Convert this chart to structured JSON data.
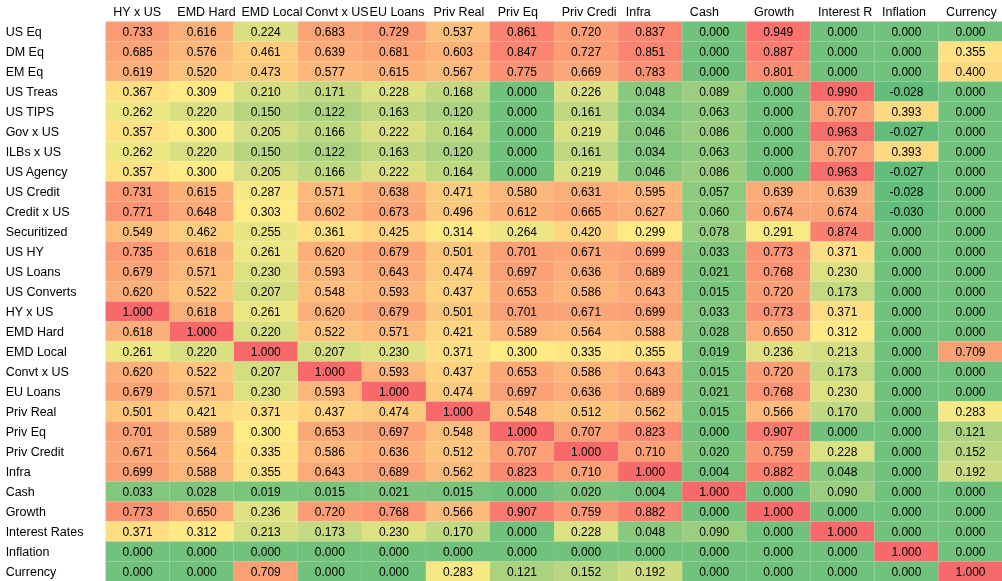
{
  "chart_data": {
    "type": "heatmap",
    "categories": [
      "HY x US",
      "EMD Hard",
      "EMD Local",
      "Convt x US",
      "EU Loans",
      "Priv Real",
      "Priv Eq",
      "Priv Credi",
      "Infra",
      "Cash",
      "Growth",
      "Interest R",
      "Inflation",
      "Currency"
    ],
    "y_categories": [
      "US Eq",
      "DM Eq",
      "EM Eq",
      "US Treas",
      "US TIPS",
      "Gov x US",
      "ILBs x US",
      "US Agency",
      "US Credit",
      "Credit x US",
      "Securitized",
      "US HY",
      "US Loans",
      "US Converts",
      "HY x US",
      "EMD Hard",
      "EMD Local",
      "Convt x US",
      "EU Loans",
      "Priv Real",
      "Priv Eq",
      "Priv Credit",
      "Infra",
      "Cash",
      "Growth",
      "Interest Rates",
      "Inflation",
      "Currency"
    ],
    "cells": [
      [
        0.733,
        0.616,
        0.224,
        0.683,
        0.729,
        0.537,
        0.861,
        0.72,
        0.837,
        0.0,
        0.949,
        0.0,
        0.0,
        0.0
      ],
      [
        0.685,
        0.576,
        0.461,
        0.639,
        0.681,
        0.603,
        0.847,
        0.727,
        0.851,
        0.0,
        0.887,
        0.0,
        0.0,
        0.355
      ],
      [
        0.619,
        0.52,
        0.473,
        0.577,
        0.615,
        0.567,
        0.775,
        0.669,
        0.783,
        0.0,
        0.801,
        0.0,
        0.0,
        0.4
      ],
      [
        0.367,
        0.309,
        0.21,
        0.171,
        0.228,
        0.168,
        0.0,
        0.226,
        0.048,
        0.089,
        0.0,
        0.99,
        -0.028,
        0.0
      ],
      [
        0.262,
        0.22,
        0.15,
        0.122,
        0.163,
        0.12,
        0.0,
        0.161,
        0.034,
        0.063,
        0.0,
        0.707,
        0.393,
        0.0
      ],
      [
        0.357,
        0.3,
        0.205,
        0.166,
        0.222,
        0.164,
        0.0,
        0.219,
        0.046,
        0.086,
        0.0,
        0.963,
        -0.027,
        0.0
      ],
      [
        0.262,
        0.22,
        0.15,
        0.122,
        0.163,
        0.12,
        0.0,
        0.161,
        0.034,
        0.063,
        0.0,
        0.707,
        0.393,
        0.0
      ],
      [
        0.357,
        0.3,
        0.205,
        0.166,
        0.222,
        0.164,
        0.0,
        0.219,
        0.046,
        0.086,
        0.0,
        0.963,
        -0.027,
        0.0
      ],
      [
        0.731,
        0.615,
        0.287,
        0.571,
        0.638,
        0.471,
        0.58,
        0.631,
        0.595,
        0.057,
        0.639,
        0.639,
        -0.028,
        0.0
      ],
      [
        0.771,
        0.648,
        0.303,
        0.602,
        0.673,
        0.496,
        0.612,
        0.665,
        0.627,
        0.06,
        0.674,
        0.674,
        -0.03,
        0.0
      ],
      [
        0.549,
        0.462,
        0.255,
        0.361,
        0.425,
        0.314,
        0.264,
        0.42,
        0.299,
        0.078,
        0.291,
        0.874,
        0.0,
        0.0
      ],
      [
        0.735,
        0.618,
        0.261,
        0.62,
        0.679,
        0.501,
        0.701,
        0.671,
        0.699,
        0.033,
        0.773,
        0.371,
        0.0,
        0.0
      ],
      [
        0.679,
        0.571,
        0.23,
        0.593,
        0.643,
        0.474,
        0.697,
        0.636,
        0.689,
        0.021,
        0.768,
        0.23,
        0.0,
        0.0
      ],
      [
        0.62,
        0.522,
        0.207,
        0.548,
        0.593,
        0.437,
        0.653,
        0.586,
        0.643,
        0.015,
        0.72,
        0.173,
        0.0,
        0.0
      ],
      [
        1.0,
        0.618,
        0.261,
        0.62,
        0.679,
        0.501,
        0.701,
        0.671,
        0.699,
        0.033,
        0.773,
        0.371,
        0.0,
        0.0
      ],
      [
        0.618,
        1.0,
        0.22,
        0.522,
        0.571,
        0.421,
        0.589,
        0.564,
        0.588,
        0.028,
        0.65,
        0.312,
        0.0,
        0.0
      ],
      [
        0.261,
        0.22,
        1.0,
        0.207,
        0.23,
        0.371,
        0.3,
        0.335,
        0.355,
        0.019,
        0.236,
        0.213,
        0.0,
        0.709
      ],
      [
        0.62,
        0.522,
        0.207,
        1.0,
        0.593,
        0.437,
        0.653,
        0.586,
        0.643,
        0.015,
        0.72,
        0.173,
        0.0,
        0.0
      ],
      [
        0.679,
        0.571,
        0.23,
        0.593,
        1.0,
        0.474,
        0.697,
        0.636,
        0.689,
        0.021,
        0.768,
        0.23,
        0.0,
        0.0
      ],
      [
        0.501,
        0.421,
        0.371,
        0.437,
        0.474,
        1.0,
        0.548,
        0.512,
        0.562,
        0.015,
        0.566,
        0.17,
        0.0,
        0.283
      ],
      [
        0.701,
        0.589,
        0.3,
        0.653,
        0.697,
        0.548,
        1.0,
        0.707,
        0.823,
        0.0,
        0.907,
        0.0,
        0.0,
        0.121
      ],
      [
        0.671,
        0.564,
        0.335,
        0.586,
        0.636,
        0.512,
        0.707,
        1.0,
        0.71,
        0.02,
        0.759,
        0.228,
        0.0,
        0.152
      ],
      [
        0.699,
        0.588,
        0.355,
        0.643,
        0.689,
        0.562,
        0.823,
        0.71,
        1.0,
        0.004,
        0.882,
        0.048,
        0.0,
        0.192
      ],
      [
        0.033,
        0.028,
        0.019,
        0.015,
        0.021,
        0.015,
        0.0,
        0.02,
        0.004,
        1.0,
        0.0,
        0.09,
        0.0,
        0.0
      ],
      [
        0.773,
        0.65,
        0.236,
        0.72,
        0.768,
        0.566,
        0.907,
        0.759,
        0.882,
        0.0,
        1.0,
        0.0,
        0.0,
        0.0
      ],
      [
        0.371,
        0.312,
        0.213,
        0.173,
        0.23,
        0.17,
        0.0,
        0.228,
        0.048,
        0.09,
        0.0,
        1.0,
        0.0,
        0.0
      ],
      [
        0.0,
        0.0,
        0.0,
        0.0,
        0.0,
        0.0,
        0.0,
        0.0,
        0.0,
        0.0,
        0.0,
        0.0,
        1.0,
        0.0
      ],
      [
        0.0,
        0.0,
        0.709,
        0.0,
        0.0,
        0.283,
        0.121,
        0.152,
        0.192,
        0.0,
        0.0,
        0.0,
        0.0,
        1.0
      ]
    ],
    "cell_labels": [
      [
        "0.733",
        "0.616",
        "0.224",
        "0.683",
        "0.729",
        "0.537",
        "0.861",
        "0.720",
        "0.837",
        "0.000",
        "0.949",
        "0.000",
        "0.000",
        "0.000"
      ],
      [
        "0.685",
        "0.576",
        "0.461",
        "0.639",
        "0.681",
        "0.603",
        "0.847",
        "0.727",
        "0.851",
        "0.000",
        "0.887",
        "0.000",
        "0.000",
        "0.355"
      ],
      [
        "0.619",
        "0.520",
        "0.473",
        "0.577",
        "0.615",
        "0.567",
        "0.775",
        "0.669",
        "0.783",
        "0.000",
        "0.801",
        "0.000",
        "0.000",
        "0.400"
      ],
      [
        "0.367",
        "0.309",
        "0.210",
        "0.171",
        "0.228",
        "0.168",
        "0.000",
        "0.226",
        "0.048",
        "0.089",
        "0.000",
        "0.990",
        "-0.028",
        "0.000"
      ],
      [
        "0.262",
        "0.220",
        "0.150",
        "0.122",
        "0.163",
        "0.120",
        "0.000",
        "0.161",
        "0.034",
        "0.063",
        "0.000",
        "0.707",
        "0.393",
        "0.000"
      ],
      [
        "0.357",
        "0.300",
        "0.205",
        "0.166",
        "0.222",
        "0.164",
        "0.000",
        "0.219",
        "0.046",
        "0.086",
        "0.000",
        "0.963",
        "-0.027",
        "0.000"
      ],
      [
        "0.262",
        "0.220",
        "0.150",
        "0.122",
        "0.163",
        "0.120",
        "0.000",
        "0.161",
        "0.034",
        "0.063",
        "0.000",
        "0.707",
        "0.393",
        "0.000"
      ],
      [
        "0.357",
        "0.300",
        "0.205",
        "0.166",
        "0.222",
        "0.164",
        "0.000",
        "0.219",
        "0.046",
        "0.086",
        "0.000",
        "0.963",
        "-0.027",
        "0.000"
      ],
      [
        "0.731",
        "0.615",
        "0.287",
        "0.571",
        "0.638",
        "0.471",
        "0.580",
        "0.631",
        "0.595",
        "0.057",
        "0.639",
        "0.639",
        "-0.028",
        "0.000"
      ],
      [
        "0.771",
        "0.648",
        "0.303",
        "0.602",
        "0.673",
        "0.496",
        "0.612",
        "0.665",
        "0.627",
        "0.060",
        "0.674",
        "0.674",
        "-0.030",
        "0.000"
      ],
      [
        "0.549",
        "0.462",
        "0.255",
        "0.361",
        "0.425",
        "0.314",
        "0.264",
        "0.420",
        "0.299",
        "0.078",
        "0.291",
        "0.874",
        "0.000",
        "0.000"
      ],
      [
        "0.735",
        "0.618",
        "0.261",
        "0.620",
        "0.679",
        "0.501",
        "0.701",
        "0.671",
        "0.699",
        "0.033",
        "0.773",
        "0.371",
        "0.000",
        "0.000"
      ],
      [
        "0.679",
        "0.571",
        "0.230",
        "0.593",
        "0.643",
        "0.474",
        "0.697",
        "0.636",
        "0.689",
        "0.021",
        "0.768",
        "0.230",
        "0.000",
        "0.000"
      ],
      [
        "0.620",
        "0.522",
        "0.207",
        "0.548",
        "0.593",
        "0.437",
        "0.653",
        "0.586",
        "0.643",
        "0.015",
        "0.720",
        "0.173",
        "0.000",
        "0.000"
      ],
      [
        "1.000",
        "0.618",
        "0.261",
        "0.620",
        "0.679",
        "0.501",
        "0.701",
        "0.671",
        "0.699",
        "0.033",
        "0.773",
        "0.371",
        "0.000",
        "0.000"
      ],
      [
        "0.618",
        "1.000",
        "0.220",
        "0.522",
        "0.571",
        "0.421",
        "0.589",
        "0.564",
        "0.588",
        "0.028",
        "0.650",
        "0.312",
        "0.000",
        "0.000"
      ],
      [
        "0.261",
        "0.220",
        "1.000",
        "0.207",
        "0.230",
        "0.371",
        "0.300",
        "0.335",
        "0.355",
        "0.019",
        "0.236",
        "0.213",
        "0.000",
        "0.709"
      ],
      [
        "0.620",
        "0.522",
        "0.207",
        "1.000",
        "0.593",
        "0.437",
        "0.653",
        "0.586",
        "0.643",
        "0.015",
        "0.720",
        "0.173",
        "0.000",
        "0.000"
      ],
      [
        "0.679",
        "0.571",
        "0.230",
        "0.593",
        "1.000",
        "0.474",
        "0.697",
        "0.636",
        "0.689",
        "0.021",
        "0.768",
        "0.230",
        "0.000",
        "0.000"
      ],
      [
        "0.501",
        "0.421",
        "0.371",
        "0.437",
        "0.474",
        "1.000",
        "0.548",
        "0.512",
        "0.562",
        "0.015",
        "0.566",
        "0.170",
        "0.000",
        "0.283"
      ],
      [
        "0.701",
        "0.589",
        "0.300",
        "0.653",
        "0.697",
        "0.548",
        "1.000",
        "0.707",
        "0.823",
        "0.000",
        "0.907",
        "0.000",
        "0.000",
        "0.121"
      ],
      [
        "0.671",
        "0.564",
        "0.335",
        "0.586",
        "0.636",
        "0.512",
        "0.707",
        "1.000",
        "0.710",
        "0.020",
        "0.759",
        "0.228",
        "0.000",
        "0.152"
      ],
      [
        "0.699",
        "0.588",
        "0.355",
        "0.643",
        "0.689",
        "0.562",
        "0.823",
        "0.710",
        "1.000",
        "0.004",
        "0.882",
        "0.048",
        "0.000",
        "0.192"
      ],
      [
        "0.033",
        "0.028",
        "0.019",
        "0.015",
        "0.021",
        "0.015",
        "0.000",
        "0.020",
        "0.004",
        "1.000",
        "0.000",
        "0.090",
        "0.000",
        "0.000"
      ],
      [
        "0.773",
        "0.650",
        "0.236",
        "0.720",
        "0.768",
        "0.566",
        "0.907",
        "0.759",
        "0.882",
        "0.000",
        "1.000",
        "0.000",
        "0.000",
        "0.000"
      ],
      [
        "0.371",
        "0.312",
        "0.213",
        "0.173",
        "0.230",
        "0.170",
        "0.000",
        "0.228",
        "0.048",
        "0.090",
        "0.000",
        "1.000",
        "0.000",
        "0.000"
      ],
      [
        "0.000",
        "0.000",
        "0.000",
        "0.000",
        "0.000",
        "0.000",
        "0.000",
        "0.000",
        "0.000",
        "0.000",
        "0.000",
        "0.000",
        "1.000",
        "0.000"
      ],
      [
        "0.000",
        "0.000",
        "0.709",
        "0.000",
        "0.000",
        "0.283",
        "0.121",
        "0.152",
        "0.192",
        "0.000",
        "0.000",
        "0.000",
        "0.000",
        "1.000"
      ]
    ]
  }
}
